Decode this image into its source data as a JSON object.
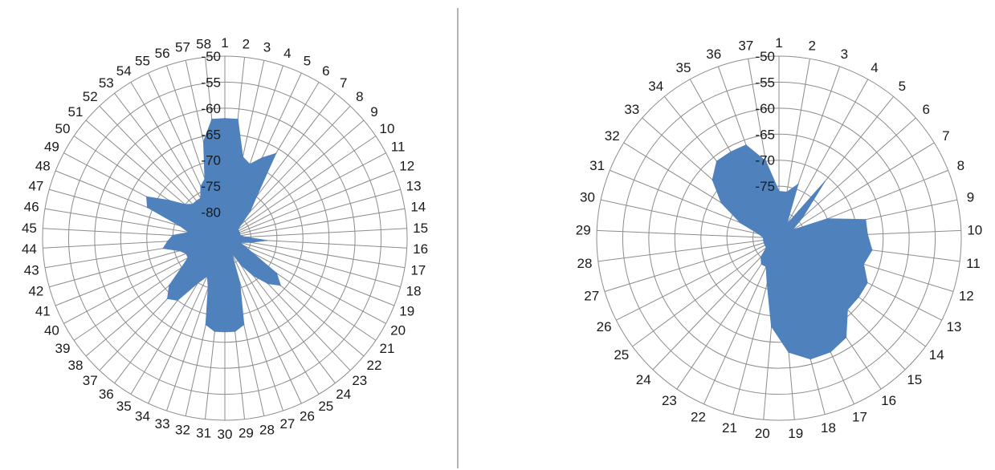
{
  "chart_data": [
    {
      "type": "radar",
      "title": "",
      "categories": [
        "1",
        "2",
        "3",
        "4",
        "5",
        "6",
        "7",
        "8",
        "9",
        "10",
        "11",
        "12",
        "13",
        "14",
        "15",
        "16",
        "17",
        "18",
        "19",
        "20",
        "21",
        "22",
        "23",
        "24",
        "25",
        "26",
        "27",
        "28",
        "29",
        "30",
        "31",
        "32",
        "33",
        "34",
        "35",
        "36",
        "37",
        "38",
        "39",
        "40",
        "41",
        "42",
        "43",
        "44",
        "45",
        "46",
        "47",
        "48",
        "49",
        "50",
        "51",
        "52",
        "53",
        "54",
        "55",
        "56",
        "57",
        "58"
      ],
      "series": [
        {
          "color": "#4f81bd",
          "values": [
            -62,
            -62,
            -69,
            -70,
            -68,
            -66,
            -75,
            -78,
            -81,
            -82,
            -82,
            -82,
            -82,
            -82,
            -81,
            -77,
            -80,
            -82,
            -81,
            -79,
            -73,
            -71,
            -73,
            -76,
            -79,
            -82,
            -76,
            -68,
            -67,
            -67,
            -67,
            -68,
            -75,
            -77,
            -75,
            -70,
            -69,
            -71,
            -75,
            -77,
            -77,
            -76,
            -73,
            -74,
            -75,
            -78,
            -76,
            -69,
            -68,
            -72,
            -75,
            -76,
            -76,
            -76,
            -74,
            -73,
            -66,
            -62
          ]
        }
      ],
      "r_ticks": [
        "-50",
        "-55",
        "-60",
        "-65",
        "-70",
        "-75",
        "-80"
      ],
      "r_range": [
        -85,
        -50
      ],
      "grid": true
    },
    {
      "type": "radar",
      "title": "",
      "categories": [
        "1",
        "2",
        "3",
        "4",
        "5",
        "6",
        "7",
        "8",
        "9",
        "10",
        "11",
        "12",
        "13",
        "14",
        "15",
        "16",
        "17",
        "18",
        "19",
        "20",
        "21",
        "22",
        "23",
        "24",
        "25",
        "26",
        "27",
        "28",
        "29",
        "30",
        "31",
        "32",
        "33",
        "34",
        "35",
        "36",
        "37"
      ],
      "series": [
        {
          "color": "#4f81bd",
          "values": [
            -76,
            -76,
            -74,
            -82,
            -71,
            -79,
            -82,
            -75,
            -68,
            -68,
            -67,
            -68,
            -66,
            -66,
            -66,
            -62,
            -61,
            -61,
            -63,
            -68,
            -76,
            -79,
            -79,
            -80,
            -82,
            -82,
            -82,
            -82,
            -82,
            -81,
            -77,
            -72,
            -68,
            -66,
            -66,
            -66,
            -70
          ]
        }
      ],
      "r_ticks": [
        "-50",
        "-55",
        "-60",
        "-65",
        "-70",
        "-75"
      ],
      "r_range": [
        -85,
        -50
      ],
      "grid": true
    }
  ],
  "colors": {
    "fill": "#4f81bd",
    "grid": "#8c8c8c",
    "divider": "#9a9a9a"
  }
}
